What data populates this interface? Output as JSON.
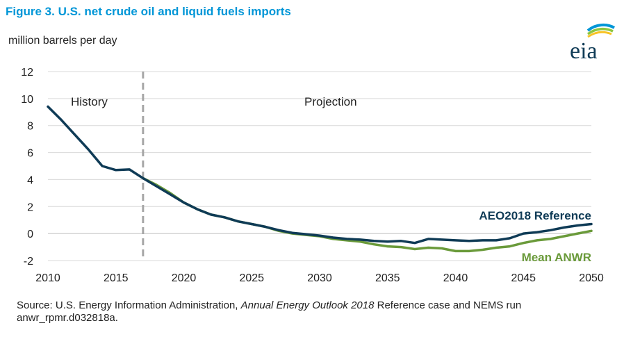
{
  "figure": {
    "title": "Figure 3. U.S. net crude oil and liquid fuels imports",
    "units": "million barrels per day",
    "logo_text": "eia"
  },
  "source": {
    "prefix": "Source: U.S. Energy Information Administration, ",
    "publication": "Annual Energy Outlook 2018",
    "suffix": " Reference case and NEMS run anwr_rpmr.d032818a."
  },
  "colors": {
    "reference": "#0f3b56",
    "anwr": "#6a9a3a",
    "grid": "#d9d9d9",
    "divider": "#a6a6a6",
    "title": "#0096d7"
  },
  "chart_data": {
    "type": "line",
    "xlim": [
      2010,
      2050
    ],
    "ylim": [
      -2,
      12
    ],
    "x_ticks": [
      2010,
      2015,
      2020,
      2025,
      2030,
      2035,
      2040,
      2045,
      2050
    ],
    "y_ticks": [
      -2,
      0,
      2,
      4,
      6,
      8,
      10,
      12
    ],
    "grid": "horizontal",
    "divider_x": 2017,
    "annotations": [
      "History",
      "Projection"
    ],
    "series": [
      {
        "name": "Mean ANWR",
        "x": [
          2017,
          2018,
          2019,
          2020,
          2021,
          2022,
          2023,
          2024,
          2025,
          2026,
          2027,
          2028,
          2029,
          2030,
          2031,
          2032,
          2033,
          2034,
          2035,
          2036,
          2037,
          2038,
          2039,
          2040,
          2041,
          2042,
          2043,
          2044,
          2045,
          2046,
          2047,
          2048,
          2049,
          2050
        ],
        "values": [
          4.1,
          3.6,
          3.0,
          2.3,
          1.8,
          1.4,
          1.2,
          0.9,
          0.7,
          0.5,
          0.2,
          0.0,
          -0.1,
          -0.2,
          -0.4,
          -0.5,
          -0.6,
          -0.8,
          -0.95,
          -1.0,
          -1.15,
          -1.05,
          -1.1,
          -1.3,
          -1.3,
          -1.2,
          -1.05,
          -0.95,
          -0.7,
          -0.5,
          -0.4,
          -0.2,
          0.0,
          0.2
        ]
      },
      {
        "name": "AEO2018 Reference",
        "x": [
          2010,
          2011,
          2012,
          2013,
          2014,
          2015,
          2016,
          2017,
          2018,
          2019,
          2020,
          2021,
          2022,
          2023,
          2024,
          2025,
          2026,
          2027,
          2028,
          2029,
          2030,
          2031,
          2032,
          2033,
          2034,
          2035,
          2036,
          2037,
          2038,
          2039,
          2040,
          2041,
          2042,
          2043,
          2044,
          2045,
          2046,
          2047,
          2048,
          2049,
          2050
        ],
        "values": [
          9.4,
          8.4,
          7.3,
          6.2,
          5.0,
          4.7,
          4.75,
          4.1,
          3.5,
          2.9,
          2.3,
          1.8,
          1.4,
          1.2,
          0.9,
          0.7,
          0.5,
          0.25,
          0.05,
          -0.05,
          -0.15,
          -0.3,
          -0.4,
          -0.45,
          -0.55,
          -0.6,
          -0.55,
          -0.7,
          -0.4,
          -0.45,
          -0.5,
          -0.55,
          -0.5,
          -0.5,
          -0.35,
          0.0,
          0.1,
          0.25,
          0.45,
          0.6,
          0.7
        ]
      }
    ]
  }
}
